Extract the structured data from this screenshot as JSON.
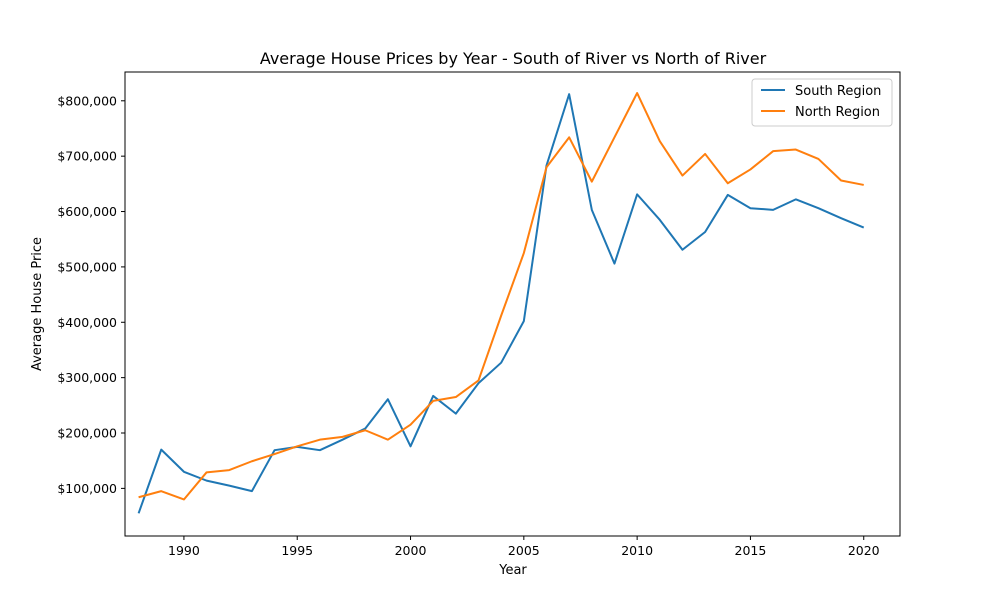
{
  "chart_data": {
    "type": "line",
    "title": "Average House Prices by Year - South of River vs North of River",
    "xlabel": "Year",
    "ylabel": "Average House Price",
    "xlim": [
      1987.4,
      2021.6
    ],
    "ylim": [
      14000,
      852000
    ],
    "x_ticks": [
      1990,
      1995,
      2000,
      2005,
      2010,
      2015,
      2020
    ],
    "x_tick_labels": [
      "1990",
      "1995",
      "2000",
      "2005",
      "2010",
      "2015",
      "2020"
    ],
    "y_ticks": [
      100000,
      200000,
      300000,
      400000,
      500000,
      600000,
      700000,
      800000
    ],
    "y_tick_labels": [
      "$100,000",
      "$200,000",
      "$300,000",
      "$400,000",
      "$500,000",
      "$600,000",
      "$700,000",
      "$800,000"
    ],
    "grid": false,
    "legend_position": "top-right",
    "x": [
      1988,
      1989,
      1990,
      1991,
      1992,
      1993,
      1994,
      1995,
      1996,
      1997,
      1998,
      1999,
      2000,
      2001,
      2002,
      2003,
      2004,
      2005,
      2006,
      2007,
      2008,
      2009,
      2010,
      2011,
      2012,
      2013,
      2014,
      2015,
      2016,
      2017,
      2018,
      2019,
      2020
    ],
    "series": [
      {
        "name": "South Region",
        "color": "#1f77b4",
        "values": [
          55000,
          170000,
          130000,
          114000,
          105000,
          95000,
          169000,
          175000,
          169000,
          188000,
          208000,
          261000,
          176000,
          267000,
          235000,
          290000,
          327000,
          402000,
          683000,
          812000,
          603000,
          506000,
          631000,
          585000,
          531000,
          563000,
          630000,
          606000,
          603000,
          622000,
          606000,
          588000,
          571000
        ]
      },
      {
        "name": "North Region",
        "color": "#ff7f0e",
        "values": [
          84000,
          95000,
          80000,
          129000,
          133000,
          149000,
          162000,
          176000,
          188000,
          193000,
          205000,
          188000,
          215000,
          258000,
          265000,
          295000,
          412000,
          525000,
          680000,
          734000,
          654000,
          734000,
          814000,
          727000,
          665000,
          704000,
          651000,
          676000,
          709000,
          712000,
          695000,
          656000,
          648000
        ]
      }
    ]
  }
}
